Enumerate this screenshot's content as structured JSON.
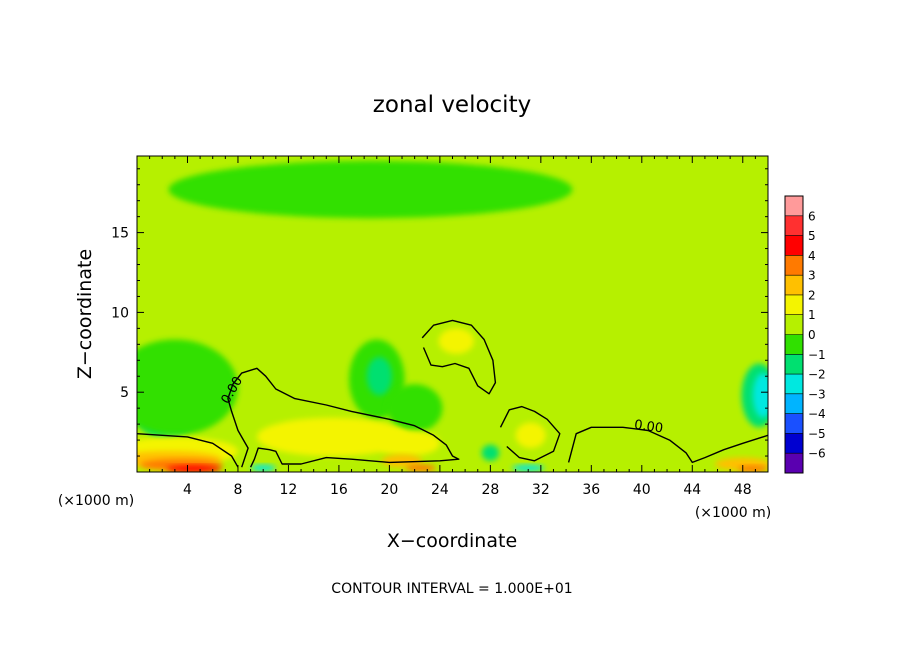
{
  "chart_data": {
    "type": "heatmap",
    "title": "zonal velocity",
    "xlabel": "X−coordinate",
    "ylabel": "Z−coordinate",
    "x_unit_left": "(×1000 m)",
    "x_unit_right": "(×1000 m)",
    "footer": "CONTOUR INTERVAL = 1.000E+01",
    "xlim": [
      0,
      50
    ],
    "ylim": [
      0,
      19.8
    ],
    "x_ticks": [
      4,
      8,
      12,
      16,
      20,
      24,
      28,
      32,
      36,
      40,
      44,
      48
    ],
    "x_tick_labels": [
      "4",
      "8",
      "12",
      "16",
      "20",
      "24",
      "28",
      "32",
      "36",
      "40",
      "44",
      "48"
    ],
    "y_ticks": [
      5,
      10,
      15
    ],
    "y_tick_labels": [
      "5",
      "10",
      "15"
    ],
    "colorbar": {
      "levels": [
        6,
        5,
        4,
        3,
        2,
        1,
        0,
        -1,
        -2,
        -3,
        -4,
        -5,
        -6
      ],
      "labels": [
        "6",
        "5",
        "4",
        "3",
        "2",
        "1",
        "0",
        "−1",
        "−2",
        "−3",
        "−4",
        "−5",
        "−6"
      ],
      "colors": [
        "#ff9a9a",
        "#ff3030",
        "#ff0000",
        "#ff7a00",
        "#ffc000",
        "#f4f400",
        "#b6f000",
        "#30e000",
        "#00e070",
        "#00e8e0",
        "#00b4ff",
        "#1a50ff",
        "#0000d0",
        "#5a00b0"
      ]
    },
    "background_value": 0.3,
    "contour_labels": [
      {
        "text": "0.00",
        "x": 7.8,
        "z": 5.0,
        "angle": -60
      },
      {
        "text": "0.00",
        "x": 40.5,
        "z": 2.6,
        "angle": 8
      }
    ],
    "zero_contours": [
      {
        "name": "bottom-left",
        "points": [
          [
            0,
            2.4
          ],
          [
            2,
            2.3
          ],
          [
            4,
            2.2
          ],
          [
            6,
            1.8
          ],
          [
            7.5,
            1.0
          ],
          [
            8,
            0.3
          ]
        ]
      },
      {
        "name": "left-ridge",
        "points": [
          [
            8.3,
            0.3
          ],
          [
            8.8,
            1.5
          ],
          [
            8.0,
            2.6
          ],
          [
            7.5,
            3.8
          ],
          [
            7.2,
            4.6
          ],
          [
            7.6,
            5.5
          ],
          [
            8.3,
            6.2
          ],
          [
            9.5,
            6.5
          ],
          [
            10.2,
            6.0
          ],
          [
            11.0,
            5.2
          ],
          [
            12.5,
            4.6
          ],
          [
            15,
            4.2
          ],
          [
            17,
            3.8
          ],
          [
            20,
            3.3
          ],
          [
            22,
            2.9
          ],
          [
            23.5,
            2.3
          ],
          [
            24.5,
            1.7
          ],
          [
            25,
            1.0
          ],
          [
            25.5,
            0.8
          ],
          [
            24,
            0.7
          ],
          [
            20,
            0.6
          ],
          [
            17,
            0.8
          ],
          [
            15,
            0.9
          ],
          [
            13,
            0.5
          ],
          [
            11.5,
            0.5
          ],
          [
            11,
            1.3
          ],
          [
            10.5,
            1.4
          ],
          [
            9.6,
            1.5
          ],
          [
            9.3,
            0.8
          ],
          [
            9.0,
            0.3
          ]
        ]
      },
      {
        "name": "mid-upper-cell",
        "points": [
          [
            22.6,
            8.4
          ],
          [
            23.5,
            9.2
          ],
          [
            25,
            9.5
          ],
          [
            26.5,
            9.2
          ],
          [
            27.5,
            8.3
          ],
          [
            28.2,
            7.0
          ],
          [
            28.4,
            5.6
          ],
          [
            27.9,
            4.9
          ],
          [
            27.0,
            5.4
          ],
          [
            26.3,
            6.5
          ],
          [
            25.2,
            6.8
          ],
          [
            24.2,
            6.6
          ],
          [
            23.3,
            6.7
          ],
          [
            22.7,
            7.8
          ]
        ]
      },
      {
        "name": "right-lower-cell",
        "points": [
          [
            28.8,
            2.8
          ],
          [
            29.5,
            3.9
          ],
          [
            30.5,
            4.1
          ],
          [
            31.5,
            3.8
          ],
          [
            32.5,
            3.3
          ],
          [
            33.5,
            2.4
          ],
          [
            33.0,
            1.3
          ],
          [
            31.5,
            0.7
          ],
          [
            30.3,
            0.9
          ],
          [
            29.3,
            1.6
          ]
        ]
      },
      {
        "name": "right-ridge",
        "points": [
          [
            34.2,
            0.6
          ],
          [
            34.8,
            2.4
          ],
          [
            36,
            2.8
          ],
          [
            38.5,
            2.8
          ],
          [
            40.5,
            2.6
          ],
          [
            42.2,
            2.0
          ],
          [
            43.5,
            1.2
          ],
          [
            44.0,
            0.6
          ],
          [
            45.0,
            0.9
          ],
          [
            46.5,
            1.4
          ],
          [
            48,
            1.8
          ],
          [
            50,
            2.3
          ]
        ]
      }
    ],
    "color_blobs": [
      {
        "level": -2,
        "x": 2.3,
        "z": 4.5,
        "rx": 2.8,
        "rz": 2.4
      },
      {
        "level": -3,
        "x": 2.3,
        "z": 4.4,
        "rx": 1.9,
        "rz": 1.2
      },
      {
        "level": -4,
        "x": 2.6,
        "z": 4.3,
        "rx": 1.0,
        "rz": 0.6
      },
      {
        "level": -1,
        "x": 3.0,
        "z": 5.3,
        "rx": 5.0,
        "rz": 3.0
      },
      {
        "level": -2,
        "x": 49.3,
        "z": 4.8,
        "rx": 1.4,
        "rz": 2.0
      },
      {
        "level": -3,
        "x": 49.6,
        "z": 4.8,
        "rx": 0.8,
        "rz": 1.4
      },
      {
        "level": -1,
        "x": 19.0,
        "z": 5.8,
        "rx": 2.2,
        "rz": 2.5
      },
      {
        "level": -2,
        "x": 19.2,
        "z": 6.0,
        "rx": 1.0,
        "rz": 1.2
      },
      {
        "level": -1,
        "x": 22.0,
        "z": 4.0,
        "rx": 2.2,
        "rz": 1.5
      },
      {
        "level": -1,
        "x": 18.5,
        "z": 17.7,
        "rx": 16.0,
        "rz": 1.8
      },
      {
        "level": 1,
        "x": 3.0,
        "z": 1.3,
        "rx": 5.0,
        "rz": 0.9
      },
      {
        "level": 2,
        "x": 2.5,
        "z": 0.8,
        "rx": 4.2,
        "rz": 0.5
      },
      {
        "level": 3,
        "x": 3.5,
        "z": 0.45,
        "rx": 3.3,
        "rz": 0.35
      },
      {
        "level": 4,
        "x": 4.5,
        "z": 0.2,
        "rx": 2.2,
        "rz": 0.22
      },
      {
        "level": 1,
        "x": 15.5,
        "z": 2.2,
        "rx": 6.0,
        "rz": 1.2
      },
      {
        "level": 1,
        "x": 21.5,
        "z": 1.8,
        "rx": 2.5,
        "rz": 0.8
      },
      {
        "level": 2,
        "x": 21.0,
        "z": 0.7,
        "rx": 1.6,
        "rz": 0.4
      },
      {
        "level": 3,
        "x": 22.5,
        "z": 0.25,
        "rx": 1.2,
        "rz": 0.22
      },
      {
        "level": 1,
        "x": 25.3,
        "z": 8.2,
        "rx": 1.4,
        "rz": 0.8
      },
      {
        "level": 1,
        "x": 31.2,
        "z": 2.3,
        "rx": 1.2,
        "rz": 0.8
      },
      {
        "level": -2,
        "x": 28.0,
        "z": 1.2,
        "rx": 0.7,
        "rz": 0.5
      },
      {
        "level": -3,
        "x": 10.0,
        "z": 0.25,
        "rx": 1.0,
        "rz": 0.2
      },
      {
        "level": -3,
        "x": 31.0,
        "z": 0.25,
        "rx": 1.3,
        "rz": 0.2
      },
      {
        "level": 2,
        "x": 48.0,
        "z": 0.5,
        "rx": 2.2,
        "rz": 0.4
      },
      {
        "level": 3,
        "x": 48.8,
        "z": 0.2,
        "rx": 1.2,
        "rz": 0.2
      }
    ]
  }
}
